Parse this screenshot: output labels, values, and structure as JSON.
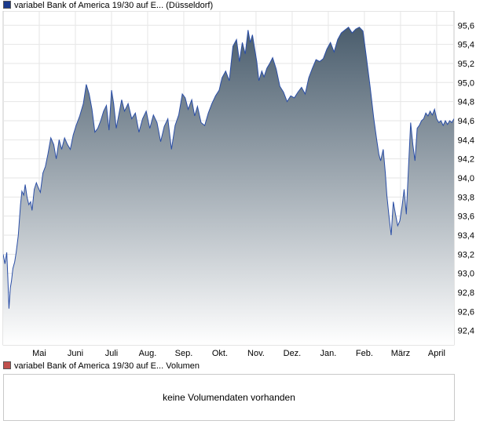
{
  "price_panel": {
    "legend": "variabel Bank of America 19/30 auf E... (Düsseldorf)",
    "swatch_color": "#1a3a8c"
  },
  "volume_panel": {
    "legend": "variabel Bank of America 19/30 auf E... Volumen",
    "swatch_color": "#c0504d",
    "message": "keine Volumendaten vorhanden"
  },
  "chart_data": {
    "type": "area",
    "line_color": "#2a4ea6",
    "fill_top_color": "#4a5d6d",
    "fill_bottom_color": "#ffffff",
    "grid": true,
    "ylim": [
      92.25,
      95.75
    ],
    "yticks": [
      "92,4",
      "92,6",
      "92,8",
      "93,0",
      "93,2",
      "93,4",
      "93,6",
      "93,8",
      "94,0",
      "94,2",
      "94,4",
      "94,6",
      "94,8",
      "95,0",
      "95,2",
      "95,4",
      "95,6"
    ],
    "ytick_values": [
      92.4,
      92.6,
      92.8,
      93.0,
      93.2,
      93.4,
      93.6,
      93.8,
      94.0,
      94.2,
      94.4,
      94.6,
      94.8,
      95.0,
      95.2,
      95.4,
      95.6
    ],
    "xticks": [
      "Mai",
      "Juni",
      "Juli",
      "Aug.",
      "Sep.",
      "Okt.",
      "Nov.",
      "Dez.",
      "Jan.",
      "Feb.",
      "März",
      "April"
    ],
    "xtick_months": [
      1,
      2,
      3,
      4,
      5,
      6,
      7,
      8,
      9,
      10,
      11,
      12
    ],
    "x_range_months": [
      0.0,
      12.48
    ],
    "series": [
      {
        "x": [
          0.0,
          0.05,
          0.1,
          0.13,
          0.16,
          0.2,
          0.23,
          0.27,
          0.32,
          0.36,
          0.42,
          0.48,
          0.52,
          0.57,
          0.61,
          0.66,
          0.71,
          0.76,
          0.8,
          0.86,
          0.92,
          0.97,
          1.03,
          1.1,
          1.17,
          1.24,
          1.32,
          1.4,
          1.47,
          1.55,
          1.62,
          1.7,
          1.78,
          1.86,
          1.94,
          2.02,
          2.12,
          2.22,
          2.3,
          2.38,
          2.46,
          2.54,
          2.62,
          2.7,
          2.78,
          2.86,
          2.93,
          3.0,
          3.06,
          3.13,
          3.2,
          3.28,
          3.36,
          3.46,
          3.56,
          3.66,
          3.76,
          3.86,
          3.96,
          4.06,
          4.16,
          4.26,
          4.36,
          4.46,
          4.56,
          4.66,
          4.76,
          4.86,
          4.96,
          5.04,
          5.12,
          5.22,
          5.3,
          5.38,
          5.48,
          5.58,
          5.68,
          5.78,
          5.88,
          5.98,
          6.06,
          6.16,
          6.26,
          6.36,
          6.46,
          6.54,
          6.62,
          6.7,
          6.78,
          6.84,
          6.9,
          6.96,
          7.02,
          7.08,
          7.16,
          7.22,
          7.3,
          7.38,
          7.46,
          7.56,
          7.66,
          7.76,
          7.86,
          7.96,
          8.06,
          8.16,
          8.26,
          8.36,
          8.46,
          8.56,
          8.66,
          8.76,
          8.86,
          8.96,
          9.06,
          9.16,
          9.26,
          9.36,
          9.46,
          9.56,
          9.66,
          9.76,
          9.86,
          9.96,
          10.06,
          10.16,
          10.26,
          10.34,
          10.4,
          10.45,
          10.52,
          10.58,
          10.62,
          10.68,
          10.74,
          10.8,
          10.86,
          10.92,
          10.98,
          11.04,
          11.1,
          11.16,
          11.22,
          11.28,
          11.34,
          11.4,
          11.46,
          11.52,
          11.58,
          11.64,
          11.7,
          11.76,
          11.82,
          11.88,
          11.94,
          12.0,
          12.06,
          12.12,
          12.18,
          12.24,
          12.3,
          12.36,
          12.42,
          12.48
        ],
        "y": [
          93.2,
          93.1,
          93.22,
          92.95,
          92.63,
          92.85,
          92.92,
          93.05,
          93.12,
          93.22,
          93.4,
          93.72,
          93.86,
          93.82,
          93.93,
          93.8,
          93.72,
          93.75,
          93.66,
          93.88,
          93.95,
          93.9,
          93.85,
          94.05,
          94.12,
          94.25,
          94.42,
          94.35,
          94.2,
          94.4,
          94.3,
          94.42,
          94.35,
          94.3,
          94.45,
          94.55,
          94.65,
          94.78,
          94.98,
          94.88,
          94.72,
          94.48,
          94.52,
          94.6,
          94.7,
          94.76,
          94.5,
          94.92,
          94.78,
          94.52,
          94.66,
          94.82,
          94.7,
          94.78,
          94.62,
          94.68,
          94.48,
          94.62,
          94.7,
          94.52,
          94.66,
          94.58,
          94.38,
          94.54,
          94.62,
          94.3,
          94.55,
          94.66,
          94.88,
          94.84,
          94.72,
          94.82,
          94.65,
          94.75,
          94.58,
          94.55,
          94.68,
          94.78,
          94.86,
          94.92,
          95.05,
          95.12,
          95.02,
          95.38,
          95.45,
          95.22,
          95.42,
          95.3,
          95.55,
          95.42,
          95.5,
          95.36,
          95.22,
          95.02,
          95.12,
          95.06,
          95.15,
          95.2,
          95.26,
          95.14,
          94.96,
          94.9,
          94.8,
          94.86,
          94.84,
          94.9,
          94.95,
          94.88,
          95.05,
          95.15,
          95.24,
          95.22,
          95.25,
          95.35,
          95.42,
          95.32,
          95.45,
          95.52,
          95.55,
          95.58,
          95.52,
          95.56,
          95.58,
          95.54,
          95.25,
          94.95,
          94.62,
          94.4,
          94.25,
          94.18,
          94.3,
          94.05,
          93.82,
          93.6,
          93.4,
          93.75,
          93.62,
          93.5,
          93.55,
          93.7,
          93.88,
          93.62,
          94.1,
          94.58,
          94.35,
          94.18,
          94.52,
          94.55,
          94.6,
          94.62,
          94.68,
          94.65,
          94.7,
          94.66,
          94.72,
          94.62,
          94.58,
          94.6,
          94.55,
          94.6,
          94.56,
          94.6,
          94.58,
          94.62
        ]
      }
    ]
  }
}
